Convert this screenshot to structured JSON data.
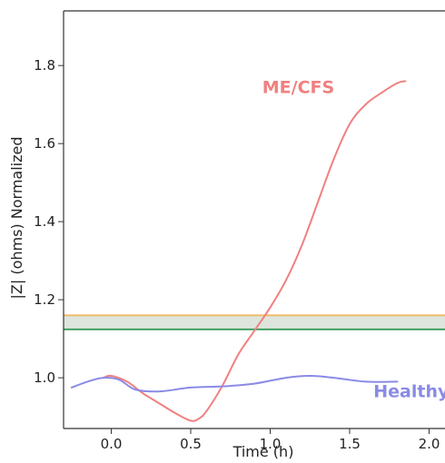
{
  "chart_data": {
    "type": "line",
    "xlabel": "Time (h)",
    "ylabel": "|Z| (ohms) Normalized",
    "xlim": [
      -0.3,
      2.1
    ],
    "ylim": [
      0.87,
      1.94
    ],
    "xticks": [
      "0.0",
      "0.5",
      "1.0",
      "1.5",
      "2.0"
    ],
    "xtick_values": [
      0.0,
      0.5,
      1.0,
      1.5,
      2.0
    ],
    "yticks": [
      "1.0",
      "1.2",
      "1.4",
      "1.6",
      "1.8"
    ],
    "ytick_values": [
      1.0,
      1.2,
      1.4,
      1.6,
      1.8
    ],
    "grid": false,
    "legend": "none",
    "series": [
      {
        "name": "ME/CFS",
        "color": "#f08080",
        "x": [
          -0.05,
          0.0,
          0.1,
          0.2,
          0.3,
          0.4,
          0.5,
          0.55,
          0.6,
          0.7,
          0.8,
          0.9,
          1.0,
          1.1,
          1.2,
          1.3,
          1.4,
          1.5,
          1.6,
          1.7,
          1.8,
          1.85
        ],
        "y": [
          1.0,
          1.005,
          0.99,
          0.96,
          0.935,
          0.91,
          0.89,
          0.895,
          0.915,
          0.98,
          1.06,
          1.12,
          1.18,
          1.25,
          1.34,
          1.45,
          1.56,
          1.65,
          1.7,
          1.73,
          1.755,
          1.76
        ]
      },
      {
        "name": "Healthy",
        "color": "#8a8ae6",
        "x": [
          -0.25,
          -0.15,
          -0.05,
          0.05,
          0.15,
          0.3,
          0.5,
          0.7,
          0.9,
          1.1,
          1.25,
          1.4,
          1.6,
          1.8
        ],
        "y": [
          0.975,
          0.99,
          1.0,
          0.995,
          0.97,
          0.965,
          0.975,
          0.978,
          0.985,
          1.0,
          1.005,
          1.0,
          0.99,
          0.99
        ]
      }
    ],
    "threshold_lines": [
      {
        "y": 1.16,
        "color": "#f0b860"
      },
      {
        "y": 1.124,
        "color": "#3a9a5a"
      }
    ],
    "band": {
      "y_low": 1.124,
      "y_high": 1.16,
      "color": "#dde5dd"
    },
    "annotations": [
      {
        "text": "ME/CFS",
        "color": "#f08080",
        "x": 0.95,
        "y": 1.73
      },
      {
        "text": "Healthy",
        "color": "#8a8ae6",
        "x": 1.65,
        "y": 0.95
      }
    ]
  }
}
